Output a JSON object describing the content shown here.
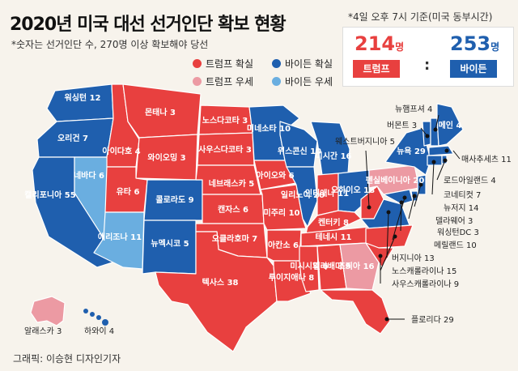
{
  "header": {
    "title": "2020년 미국 대선 선거인단 확보 현황",
    "subtitle": "*숫자는 선거인단 수, 270명 이상 확보해야 당선",
    "asof": "*4일 오후 7시 기준(미국 동부시간)"
  },
  "score": {
    "trump_num": "214",
    "trump_unit": "명",
    "trump_label": "트럼프",
    "biden_num": "253",
    "biden_unit": "명",
    "biden_label": "바이든",
    "colon": ":"
  },
  "legend": {
    "trump_win": "트럼프 확실",
    "biden_win": "바이든 확실",
    "trump_lean": "트럼프 우세",
    "biden_lean": "바이든 우세"
  },
  "colors": {
    "trump_win": "#e8403f",
    "biden_win": "#1f5fae",
    "trump_lean": "#ec9aa3",
    "biden_lean": "#6aaee0"
  },
  "states": {
    "wa": "워싱턴 12",
    "or": "오리건 7",
    "ca": "캘리포니아 55",
    "nv": "네바다 6",
    "id": "아이다호 4",
    "mt": "몬태나 3",
    "wy": "와이오밍 3",
    "ut": "유타 6",
    "az": "애리조나 11",
    "co": "콜로라도 9",
    "nm": "뉴멕시코 5",
    "nd": "노스다코타 3",
    "sd": "사우스다코타 3",
    "ne": "네브래스카 5",
    "ks": "캔자스 6",
    "ok": "오클라호마 7",
    "tx": "텍사스 38",
    "mn": "미네소타 10",
    "ia": "아이오와 6",
    "mo": "미주리 10",
    "ar": "아칸소 6",
    "la": "루이지애나 8",
    "wi": "위스콘신 10",
    "il": "일리노이 20",
    "mi": "미시간 16",
    "in": "인디애나 11",
    "oh": "오하이오 18",
    "ky": "켄터키 8",
    "tn": "테네시 11",
    "ms": "미시시피 6",
    "al": "앨라배마 9",
    "ga": "조지아 16",
    "fl": "플로리다 29",
    "pa": "펜실베이니아 20",
    "ny": "뉴욕 29",
    "me": "메인 4",
    "nh": "뉴햄프셔 4",
    "vt": "버몬트 3",
    "ma": "매사추세츠 11",
    "ri": "로드아일랜드 4",
    "ct": "코네티컷 7",
    "nj": "뉴저지 14",
    "de": "델라웨어 3",
    "dc": "워싱턴DC 3",
    "md": "메릴랜드 10",
    "va": "버지니아 13",
    "nc": "노스캐롤라이나 15",
    "sc": "사우스캐롤라이나 9",
    "wv": "웨스트버지니아 5",
    "ak": "알래스카 3",
    "hi": "하와이 4"
  },
  "credit": "그래픽: 이승현 디자인기자"
}
